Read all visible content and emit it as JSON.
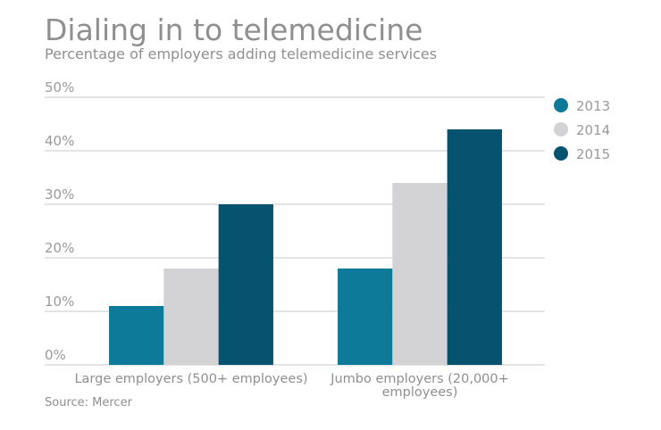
{
  "chart_data": {
    "type": "bar",
    "title": "Dialing in to telemedicine",
    "subtitle": "Percentage of employers adding telemedicine services",
    "categories": [
      [
        "Large employers (500+ employees)"
      ],
      [
        "Jumbo employers (20,000+",
        "employees)"
      ]
    ],
    "series": [
      {
        "name": "2013",
        "color": "#0c7a98",
        "values": [
          11,
          18
        ]
      },
      {
        "name": "2014",
        "color": "#d3d2d4",
        "values": [
          18,
          34
        ]
      },
      {
        "name": "2015",
        "color": "#05536f",
        "values": [
          30,
          44
        ]
      }
    ],
    "ylim": [
      0,
      50
    ],
    "yticks": [
      "0%",
      "10%",
      "20%",
      "30%",
      "40%",
      "50%"
    ],
    "grid": true,
    "legend": "right",
    "source": "Source: Mercer"
  }
}
